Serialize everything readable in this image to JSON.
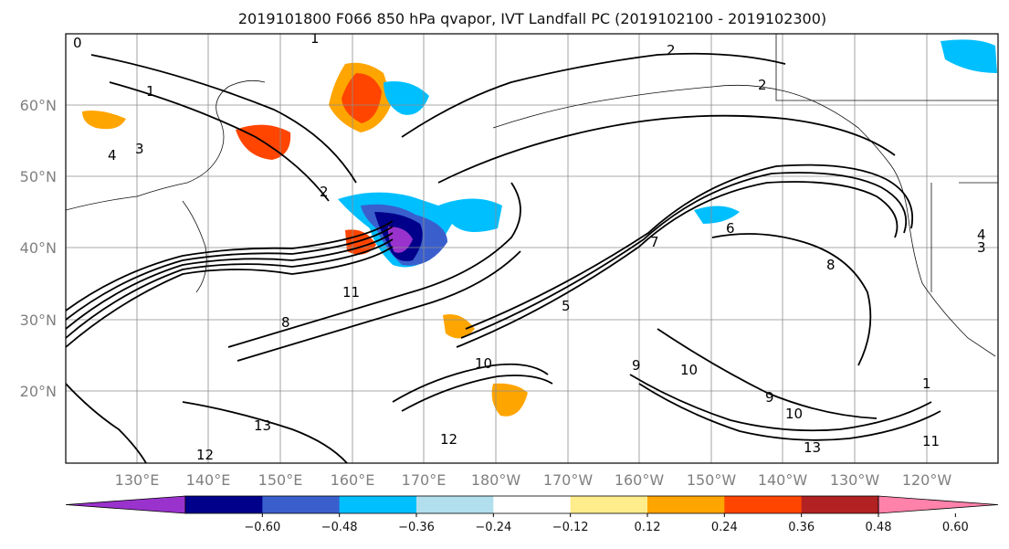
{
  "title": "2019101800 F066 850 hPa qvapor, IVT Landfall PC (2019102100 - 2019102300)",
  "map": {
    "lat_labels": [
      "60°N",
      "50°N",
      "40°N",
      "30°N",
      "20°N"
    ],
    "lon_labels": [
      "130°E",
      "140°E",
      "150°E",
      "160°E",
      "170°E",
      "180°W",
      "170°W",
      "160°W",
      "150°W",
      "140°W",
      "130°W",
      "120°W"
    ]
  },
  "colorbar": {
    "colors": [
      "#9a32cd",
      "#00008b",
      "#3a5fcd",
      "#00bfff",
      "#b2dfee",
      "#ffffff",
      "#ffec8b",
      "#ffa500",
      "#ff4500",
      "#b22222",
      "#ff82ab"
    ],
    "tick_labels": [
      "−0.60",
      "−0.48",
      "−0.36",
      "−0.24",
      "−0.12",
      "0.12",
      "0.24",
      "0.36",
      "0.48",
      "0.60"
    ]
  },
  "contour_labels": [
    "0",
    "1",
    "1",
    "2",
    "2",
    "3",
    "4",
    "5",
    "6",
    "7",
    "8",
    "8",
    "9",
    "9",
    "10",
    "10",
    "10",
    "11",
    "11",
    "12",
    "12",
    "13",
    "13",
    "2",
    "1",
    "4",
    "3"
  ]
}
